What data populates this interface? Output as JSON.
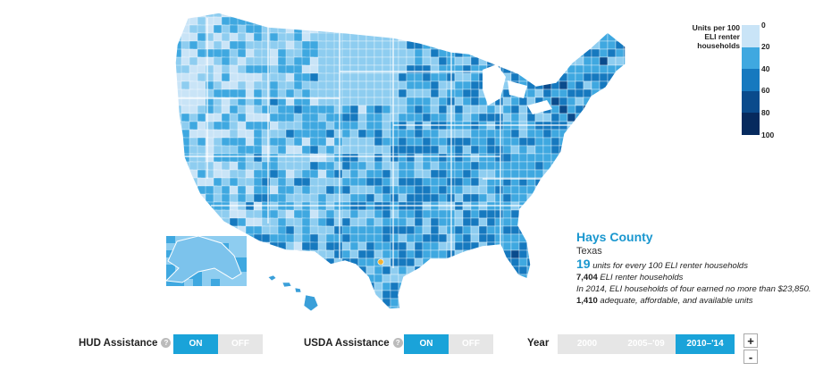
{
  "legend": {
    "title": "Units per 100 ELI renter households",
    "ticks": [
      "0",
      "20",
      "40",
      "60",
      "80",
      "100"
    ],
    "colors": [
      "#c9e4f7",
      "#8ecdf0",
      "#3fa8e0",
      "#1679bf",
      "#0a4b8c",
      "#062a5e"
    ]
  },
  "info": {
    "county": "Hays County",
    "state": "Texas",
    "units_value": "19",
    "units_text": "units for every 100 ELI renter households",
    "eli_value": "7,404",
    "eli_text": "ELI renter households",
    "income_text": "In 2014, ELI households of four earned no more than $23,850.",
    "aaa_value": "1,410",
    "aaa_text": "adequate, affordable, and available units"
  },
  "controls": {
    "hud": {
      "label": "HUD Assistance",
      "help": "?",
      "on": "ON",
      "off": "OFF"
    },
    "usda": {
      "label": "USDA Assistance",
      "help": "?",
      "on": "ON",
      "off": "OFF"
    },
    "year": {
      "label": "Year",
      "options": [
        "2000",
        "2005–'09",
        "2010–'14"
      ],
      "selected": 2
    }
  },
  "zoom": {
    "plus": "+",
    "minus": "-"
  },
  "colors": {
    "accent": "#1aa3d9",
    "highlight": "#f2b233"
  }
}
